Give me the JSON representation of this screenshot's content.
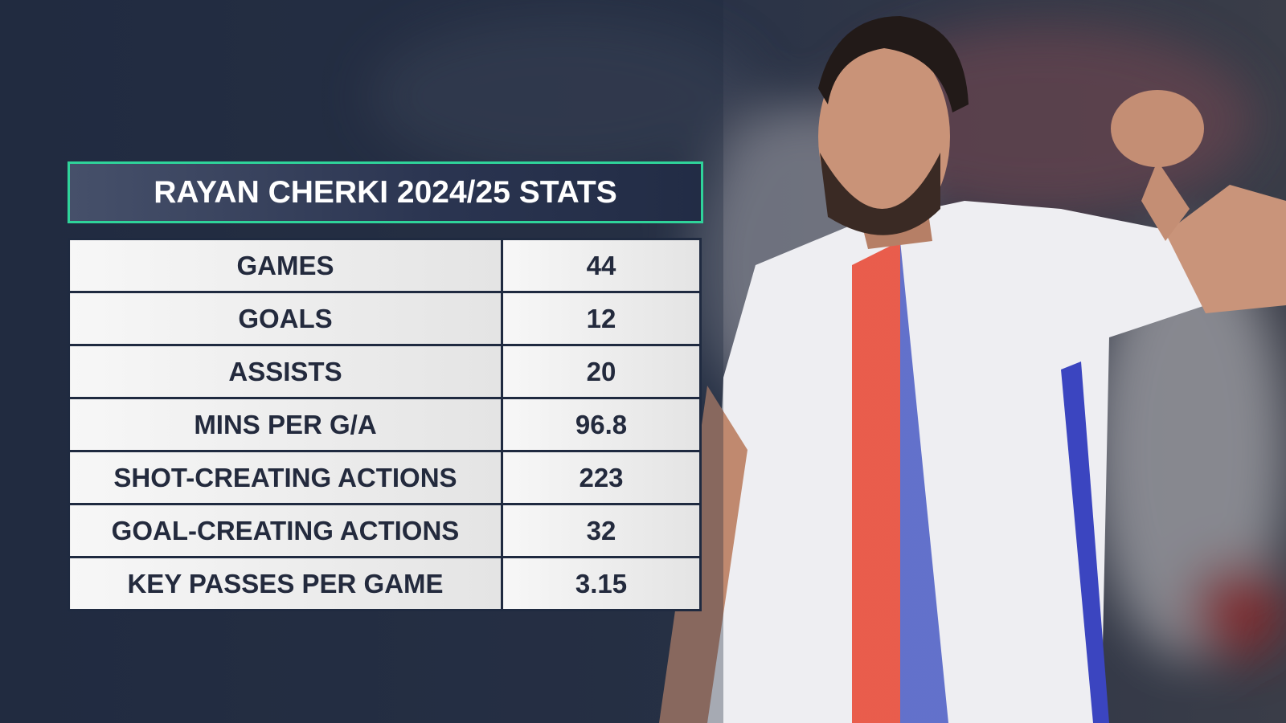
{
  "header": {
    "title": "RAYAN CHERKI 2024/25 STATS"
  },
  "table": {
    "rows": [
      [
        "GAMES",
        "44"
      ],
      [
        "GOALS",
        "12"
      ],
      [
        "ASSISTS",
        "20"
      ],
      [
        "MINS PER G/A",
        "96.8"
      ],
      [
        "SHOT-CREATING ACTIONS",
        "223"
      ],
      [
        "GOAL-CREATING ACTIONS",
        "32"
      ],
      [
        "KEY PASSES PER GAME",
        "3.15"
      ]
    ]
  }
}
